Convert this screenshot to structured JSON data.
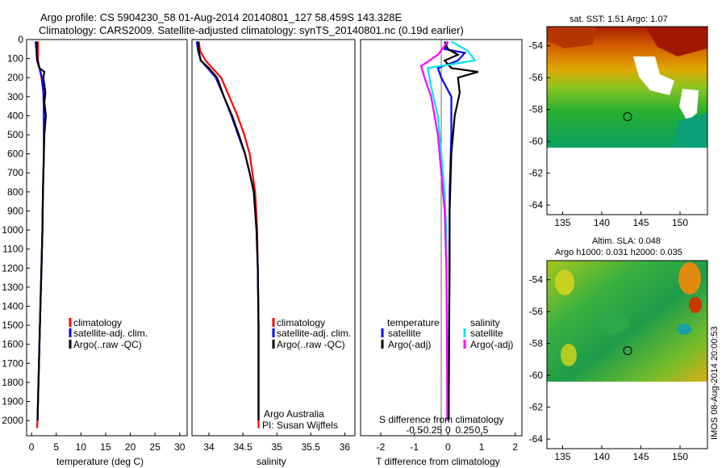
{
  "header": {
    "line1": "Argo profile: CS 5904230_58 01-Aug-2014 20140801_127 58.459S 143.328E",
    "line2": "Climatology: CARS2009. Satellite-adjusted climatology: synTS_20140801.nc (0.19d earlier)"
  },
  "side_note": "IMOS 08-Aug-2014 20:00:53",
  "colors": {
    "climatology": "#ff0000",
    "satellite": "#0000ff",
    "argo": "#000000",
    "satellite_s": "#00e5ee",
    "argo_s_adj": "#ff00ff"
  },
  "chart_data": [
    {
      "type": "line",
      "panel": "temperature",
      "xlabel": "temperature (deg C)",
      "ylabel": "",
      "xlim": [
        -1,
        31.5
      ],
      "ylim": [
        2080,
        0
      ],
      "xticks": [
        "0",
        "5",
        "10",
        "15",
        "20",
        "25",
        "30"
      ],
      "xtick_values": [
        0,
        5,
        10,
        15,
        20,
        25,
        30
      ],
      "yticks": [
        "0",
        "100",
        "200",
        "300",
        "400",
        "500",
        "600",
        "700",
        "800",
        "900",
        "1000",
        "1100",
        "1200",
        "1300",
        "1400",
        "1500",
        "1600",
        "1700",
        "1800",
        "1900",
        "2000"
      ],
      "ytick_values": [
        0,
        100,
        200,
        300,
        400,
        500,
        600,
        700,
        800,
        900,
        1000,
        1100,
        1200,
        1300,
        1400,
        1500,
        1600,
        1700,
        1800,
        1900,
        2000
      ],
      "legend": [
        "climatology",
        "satellite-adj. clim.",
        "Argo(..raw -QC)"
      ],
      "series": [
        {
          "name": "climatology",
          "color": "#ff0000",
          "points": [
            [
              1.3,
              10
            ],
            [
              1.3,
              60
            ],
            [
              1.3,
              110
            ],
            [
              1.6,
              150
            ],
            [
              2.0,
              200
            ],
            [
              2.4,
              280
            ],
            [
              2.5,
              400
            ],
            [
              2.5,
              600
            ],
            [
              2.3,
              800
            ],
            [
              2.2,
              1000
            ],
            [
              2.0,
              1200
            ],
            [
              1.8,
              1400
            ],
            [
              1.6,
              1600
            ],
            [
              1.4,
              1800
            ],
            [
              1.2,
              2000
            ],
            [
              1.1,
              2040
            ]
          ]
        },
        {
          "name": "satellite-adj. clim.",
          "color": "#0000ff",
          "points": [
            [
              0.8,
              10
            ],
            [
              1.0,
              60
            ],
            [
              1.1,
              110
            ],
            [
              1.6,
              150
            ],
            [
              2.1,
              200
            ],
            [
              2.4,
              280
            ],
            [
              2.5,
              400
            ],
            [
              2.5,
              600
            ],
            [
              2.3,
              800
            ],
            [
              2.2,
              1000
            ],
            [
              2.0,
              1200
            ],
            [
              1.8,
              1400
            ],
            [
              1.6,
              1600
            ],
            [
              1.4,
              1800
            ],
            [
              1.2,
              2000
            ]
          ]
        },
        {
          "name": "Argo(..raw -QC)",
          "color": "#000000",
          "points": [
            [
              1.1,
              10
            ],
            [
              1.0,
              60
            ],
            [
              1.2,
              110
            ],
            [
              1.6,
              150
            ],
            [
              2.6,
              170
            ],
            [
              2.4,
              200
            ],
            [
              2.8,
              280
            ],
            [
              2.6,
              330
            ],
            [
              2.9,
              400
            ],
            [
              2.6,
              500
            ],
            [
              2.5,
              600
            ],
            [
              2.3,
              800
            ],
            [
              2.2,
              1000
            ],
            [
              2.0,
              1200
            ],
            [
              1.8,
              1400
            ],
            [
              1.6,
              1600
            ],
            [
              1.4,
              1800
            ],
            [
              1.2,
              2000
            ]
          ]
        }
      ]
    },
    {
      "type": "line",
      "panel": "salinity",
      "xlabel": "salinity",
      "ylabel": "",
      "xlim": [
        33.75,
        36.15
      ],
      "ylim": [
        2080,
        0
      ],
      "xticks": [
        "34",
        "34.5",
        "35",
        "35.5",
        "36"
      ],
      "xtick_values": [
        34,
        34.5,
        35,
        35.5,
        36
      ],
      "legend": [
        "climatology",
        "satellite-adj. clim.",
        "Argo(..raw -QC)"
      ],
      "annotation": [
        "Argo Australia",
        "PI: Susan Wijffels"
      ],
      "series": [
        {
          "name": "climatology",
          "color": "#ff0000",
          "points": [
            [
              33.85,
              10
            ],
            [
              33.87,
              60
            ],
            [
              33.95,
              110
            ],
            [
              34.05,
              150
            ],
            [
              34.18,
              200
            ],
            [
              34.3,
              300
            ],
            [
              34.42,
              400
            ],
            [
              34.52,
              500
            ],
            [
              34.6,
              600
            ],
            [
              34.64,
              700
            ],
            [
              34.68,
              800
            ],
            [
              34.71,
              1000
            ],
            [
              34.72,
              1200
            ],
            [
              34.73,
              1500
            ],
            [
              34.73,
              2040
            ]
          ]
        },
        {
          "name": "satellite-adj. clim.",
          "color": "#0000ff",
          "points": [
            [
              33.82,
              10
            ],
            [
              33.84,
              60
            ],
            [
              33.88,
              110
            ],
            [
              33.98,
              150
            ],
            [
              34.1,
              200
            ],
            [
              34.22,
              300
            ],
            [
              34.33,
              400
            ],
            [
              34.43,
              500
            ],
            [
              34.53,
              600
            ],
            [
              34.6,
              700
            ],
            [
              34.66,
              800
            ],
            [
              34.7,
              1000
            ],
            [
              34.72,
              1200
            ],
            [
              34.73,
              1500
            ],
            [
              34.73,
              2000
            ]
          ]
        },
        {
          "name": "Argo(..raw -QC)",
          "color": "#000000",
          "points": [
            [
              33.84,
              10
            ],
            [
              33.85,
              60
            ],
            [
              33.88,
              110
            ],
            [
              34.0,
              150
            ],
            [
              34.12,
              200
            ],
            [
              34.22,
              300
            ],
            [
              34.34,
              400
            ],
            [
              34.44,
              500
            ],
            [
              34.53,
              600
            ],
            [
              34.6,
              700
            ],
            [
              34.66,
              800
            ],
            [
              34.7,
              1000
            ],
            [
              34.72,
              1200
            ],
            [
              34.73,
              1500
            ],
            [
              34.73,
              2000
            ]
          ]
        }
      ]
    },
    {
      "type": "line",
      "panel": "difference",
      "xlabel": "T difference from climatology",
      "top_label": "S difference from climatology",
      "xlim": [
        -2.6,
        2.2
      ],
      "ylim": [
        2080,
        0
      ],
      "xticks": [
        "-2",
        "-1",
        "0",
        "1",
        "2"
      ],
      "xtick_values": [
        -2,
        -1,
        0,
        1,
        2
      ],
      "s_ticks": [
        "-0.5",
        "-0.25",
        "0",
        "0.25",
        "0.5"
      ],
      "s_tick_values": [
        -1,
        -0.5,
        0,
        0.5,
        1
      ],
      "legend_groups": [
        {
          "title": "temperature",
          "items": [
            "satellite",
            "Argo(-adj)"
          ]
        },
        {
          "title": "salinity",
          "items": [
            "satellite",
            "Argo(-adj)"
          ]
        }
      ],
      "series": [
        {
          "name": "satellite (temperature)",
          "color": "#0000ff",
          "points": [
            [
              0,
              10
            ],
            [
              -0.1,
              50
            ],
            [
              0.5,
              70
            ],
            [
              0.3,
              110
            ],
            [
              -0.3,
              150
            ],
            [
              -0.2,
              200
            ],
            [
              0.1,
              300
            ],
            [
              0.1,
              500
            ],
            [
              0.05,
              800
            ],
            [
              0.05,
              1200
            ],
            [
              0.03,
              1600
            ],
            [
              0.02,
              2000
            ]
          ]
        },
        {
          "name": "Argo(-adj) (temperature)",
          "color": "#000000",
          "points": [
            [
              -0.1,
              10
            ],
            [
              0.0,
              50
            ],
            [
              0.3,
              80
            ],
            [
              -0.1,
              110
            ],
            [
              0.1,
              150
            ],
            [
              0.9,
              170
            ],
            [
              0.3,
              200
            ],
            [
              0.35,
              280
            ],
            [
              0.2,
              400
            ],
            [
              0.1,
              600
            ],
            [
              0.05,
              900
            ],
            [
              0.04,
              1300
            ],
            [
              0.03,
              1700
            ],
            [
              0.02,
              2000
            ]
          ]
        },
        {
          "name": "satellite (salinity)",
          "color": "#00e5ee",
          "points": [
            [
              0.1,
              10
            ],
            [
              0.6,
              60
            ],
            [
              0.8,
              110
            ],
            [
              -0.6,
              150
            ],
            [
              -0.5,
              250
            ],
            [
              -0.3,
              400
            ],
            [
              -0.2,
              600
            ],
            [
              -0.1,
              800
            ],
            [
              -0.05,
              1000
            ],
            [
              -0.03,
              1500
            ],
            [
              -0.02,
              2000
            ]
          ]
        },
        {
          "name": "Argo(-adj) (salinity)",
          "color": "#ff00ff",
          "points": [
            [
              0.0,
              10
            ],
            [
              -0.3,
              80
            ],
            [
              -0.8,
              140
            ],
            [
              -0.7,
              200
            ],
            [
              -0.5,
              300
            ],
            [
              -0.4,
              400
            ],
            [
              -0.3,
              500
            ],
            [
              -0.2,
              700
            ],
            [
              -0.1,
              900
            ],
            [
              -0.05,
              1200
            ],
            [
              -0.03,
              1600
            ],
            [
              -0.02,
              2000
            ]
          ]
        }
      ]
    },
    {
      "type": "heatmap",
      "panel": "sst_map",
      "title": "sat. SST: 1.51  Argo: 1.07",
      "xlim": [
        133,
        153.5
      ],
      "ylim": [
        -64.6,
        -52.8
      ],
      "xticks": [
        "135",
        "140",
        "145",
        "150"
      ],
      "xtick_values": [
        135,
        140,
        145,
        150
      ],
      "yticks": [
        "-54",
        "-56",
        "-58",
        "-60",
        "-62",
        "-64"
      ],
      "ytick_values": [
        -54,
        -56,
        -58,
        -60,
        -62,
        -64
      ],
      "data_bottom_lat": -60.2,
      "marker": [
        143.3,
        -58.45
      ]
    },
    {
      "type": "heatmap",
      "panel": "sla_map",
      "title_lines": [
        "Altim. SLA: 0.048",
        "Argo h1000: 0.031  h2000: 0.035"
      ],
      "xlim": [
        133,
        153.5
      ],
      "ylim": [
        -64.6,
        -52.8
      ],
      "xticks": [
        "135",
        "140",
        "145",
        "150"
      ],
      "xtick_values": [
        135,
        140,
        145,
        150
      ],
      "yticks": [
        "-54",
        "-56",
        "-58",
        "-60",
        "-62",
        "-64"
      ],
      "ytick_values": [
        -54,
        -56,
        -58,
        -60,
        -62,
        -64
      ],
      "data_bottom_lat": -60.2,
      "marker": [
        143.3,
        -58.45
      ]
    }
  ]
}
